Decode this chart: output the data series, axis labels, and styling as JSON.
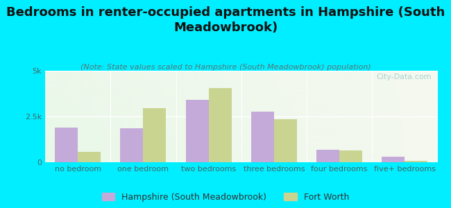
{
  "title": "Bedrooms in renter-occupied apartments in Hampshire (South\nMeadowbrook)",
  "subtitle": "(Note: State values scaled to Hampshire (South Meadowbrook) population)",
  "categories": [
    "no bedroom",
    "one bedroom",
    "two bedrooms",
    "three bedrooms",
    "four bedrooms",
    "five+ bedrooms"
  ],
  "hampshire_values": [
    1900,
    1850,
    3400,
    2750,
    680,
    320
  ],
  "fortworth_values": [
    550,
    2950,
    4050,
    2350,
    640,
    60
  ],
  "hampshire_color": "#c4aad8",
  "fortworth_color": "#c8d490",
  "background_outer": "#00eeff",
  "background_inner_top_left": "#e8f8e8",
  "background_inner_bottom_right": "#f5f8f0",
  "ylim": [
    0,
    5000
  ],
  "ytick_labels": [
    "0",
    "2.5k",
    "5k"
  ],
  "ytick_values": [
    0,
    2500,
    5000
  ],
  "watermark": "City-Data.com",
  "legend_labels": [
    "Hampshire (South Meadowbrook)",
    "Fort Worth"
  ],
  "bar_width": 0.35,
  "title_fontsize": 13,
  "subtitle_fontsize": 8,
  "tick_fontsize": 8,
  "legend_fontsize": 9,
  "title_color": "#111111",
  "subtitle_color": "#557777",
  "tick_color": "#446666",
  "watermark_color": "#99cccc"
}
